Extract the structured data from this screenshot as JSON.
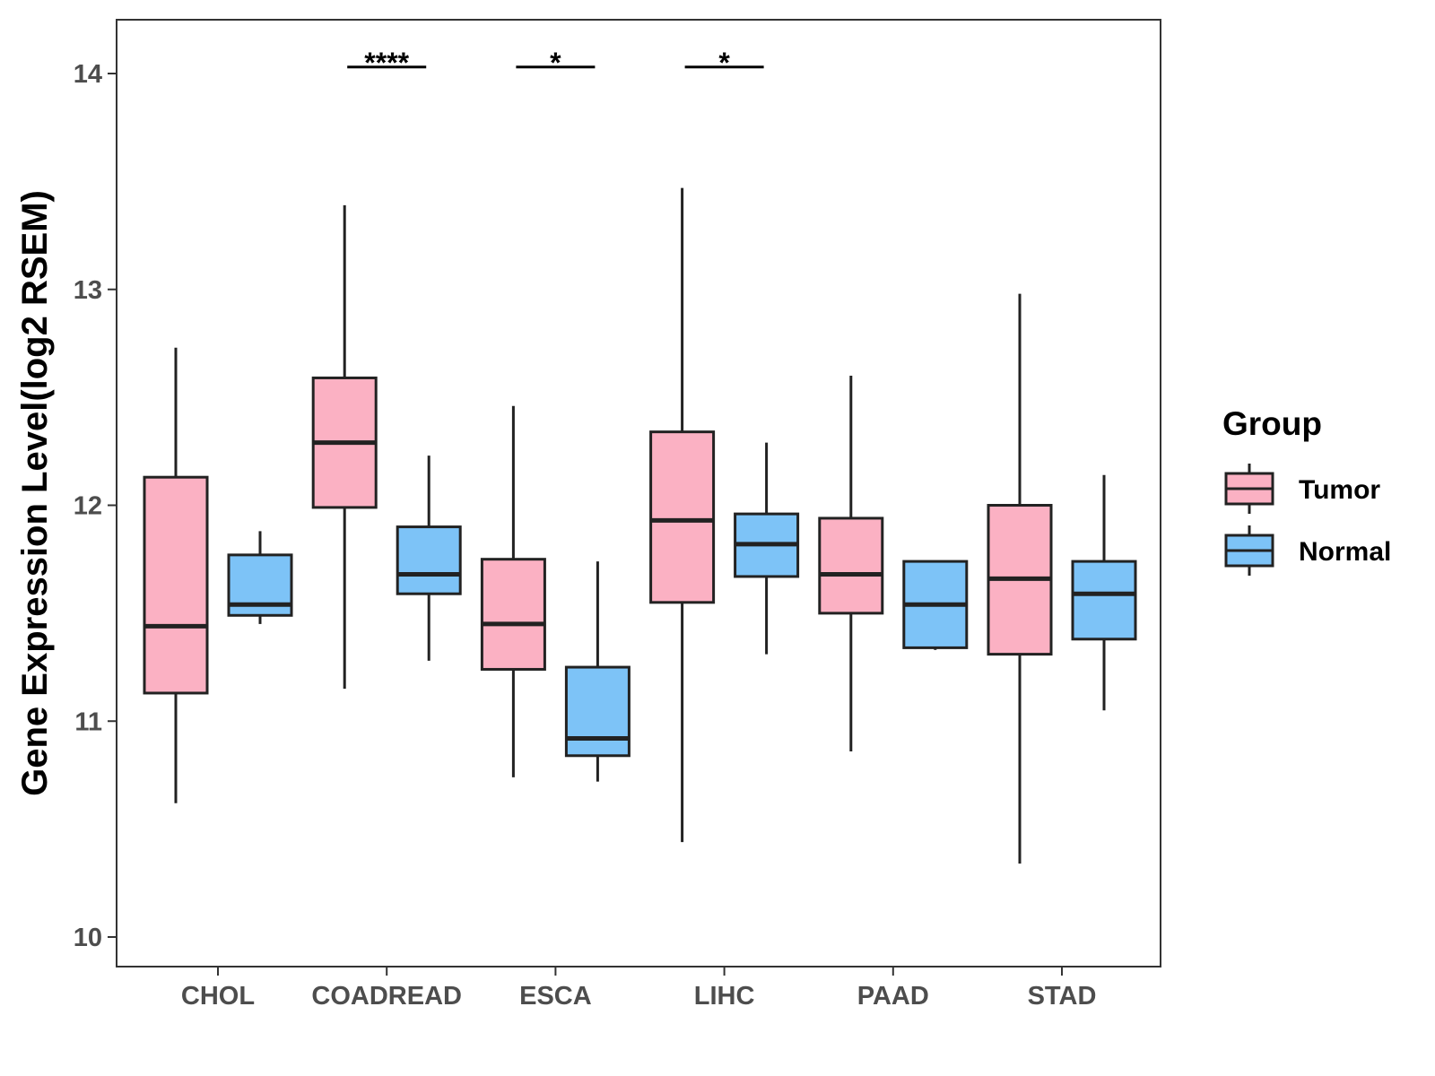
{
  "chart_data": {
    "type": "boxplot",
    "title": "",
    "xlabel": "",
    "ylabel": "Gene Expression Level(log2 RSEM)",
    "ylim": [
      9.87,
      14.25
    ],
    "yticks": [
      10,
      11,
      12,
      13,
      14
    ],
    "ytick_labels": [
      "10",
      "11",
      "12",
      "13",
      "14"
    ],
    "categories": [
      "CHOL",
      "COADREAD",
      "ESCA",
      "LIHC",
      "PAAD",
      "STAD"
    ],
    "legend": {
      "title": "Group",
      "position": "right",
      "entries": [
        "Tumor",
        "Normal"
      ]
    },
    "series": [
      {
        "name": "Tumor",
        "color": "#FBB1C3",
        "boxes": [
          {
            "min": 10.62,
            "q1": 11.13,
            "median": 11.44,
            "q3": 12.13,
            "max": 12.73
          },
          {
            "min": 11.15,
            "q1": 11.99,
            "median": 12.29,
            "q3": 12.59,
            "max": 13.39
          },
          {
            "min": 10.74,
            "q1": 11.24,
            "median": 11.45,
            "q3": 11.75,
            "max": 12.46
          },
          {
            "min": 10.44,
            "q1": 11.55,
            "median": 11.93,
            "q3": 12.34,
            "max": 13.47
          },
          {
            "min": 10.86,
            "q1": 11.5,
            "median": 11.68,
            "q3": 11.94,
            "max": 12.6
          },
          {
            "min": 10.34,
            "q1": 11.31,
            "median": 11.66,
            "q3": 12.0,
            "max": 12.98
          }
        ]
      },
      {
        "name": "Normal",
        "color": "#7DC3F7",
        "boxes": [
          {
            "min": 11.45,
            "q1": 11.49,
            "median": 11.54,
            "q3": 11.77,
            "max": 11.88
          },
          {
            "min": 11.28,
            "q1": 11.59,
            "median": 11.68,
            "q3": 11.9,
            "max": 12.23
          },
          {
            "min": 10.72,
            "q1": 10.84,
            "median": 10.92,
            "q3": 11.25,
            "max": 11.74
          },
          {
            "min": 11.31,
            "q1": 11.67,
            "median": 11.82,
            "q3": 11.96,
            "max": 12.29
          },
          {
            "min": 11.33,
            "q1": 11.34,
            "median": 11.54,
            "q3": 11.74,
            "max": 11.74
          },
          {
            "min": 11.05,
            "q1": 11.38,
            "median": 11.59,
            "q3": 11.74,
            "max": 12.14
          }
        ]
      }
    ],
    "significance": [
      {
        "category": "COADREAD",
        "label": "****",
        "y": 14.03
      },
      {
        "category": "ESCA",
        "label": "*",
        "y": 14.03
      },
      {
        "category": "LIHC",
        "label": "*",
        "y": 14.03
      }
    ]
  }
}
